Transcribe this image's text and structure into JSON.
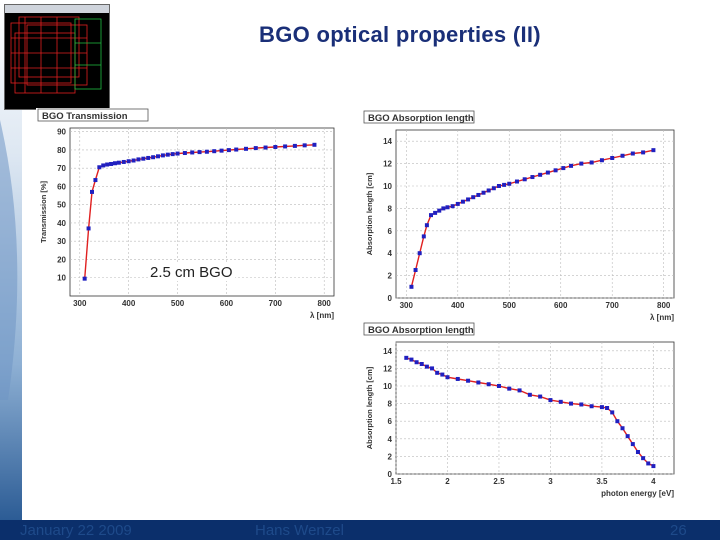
{
  "slide": {
    "title": "BGO optical properties (II)",
    "annotation": "2.5 cm BGO",
    "footer": {
      "date": "January 22 2009",
      "author": "Hans Wenzel",
      "page": "26"
    }
  },
  "colors": {
    "title": "#1a2f78",
    "marker": "#2020c0",
    "fit_line": "#e02020",
    "footer_bg": "#0b2f6b"
  },
  "chart_data": [
    {
      "type": "line",
      "title": "BGO Transmission",
      "xlabel": "λ [nm]",
      "ylabel": "Transmission [%]",
      "xlim": [
        280,
        820
      ],
      "ylim": [
        0,
        92
      ],
      "xticks": [
        300,
        400,
        500,
        600,
        700,
        800
      ],
      "yticks": [
        10,
        20,
        30,
        40,
        50,
        60,
        70,
        80,
        90
      ],
      "grid": true,
      "x": [
        310,
        318,
        325,
        332,
        340,
        348,
        356,
        364,
        372,
        380,
        390,
        400,
        410,
        420,
        430,
        440,
        450,
        460,
        470,
        480,
        490,
        500,
        515,
        530,
        545,
        560,
        575,
        590,
        605,
        620,
        640,
        660,
        680,
        700,
        720,
        740,
        760,
        780
      ],
      "y": [
        9.5,
        37,
        57,
        63.5,
        70.5,
        71.5,
        72,
        72.3,
        72.7,
        73,
        73.4,
        73.8,
        74.2,
        74.8,
        75.2,
        75.6,
        76,
        76.5,
        77,
        77.4,
        77.7,
        78,
        78.3,
        78.6,
        78.8,
        79,
        79.3,
        79.6,
        79.9,
        80.2,
        80.6,
        81,
        81.3,
        81.6,
        81.9,
        82.2,
        82.5,
        82.8
      ]
    },
    {
      "type": "line",
      "title": "BGO  Absorption length",
      "xlabel": "λ [nm]",
      "ylabel": "Absorption length [cm]",
      "xlim": [
        280,
        820
      ],
      "ylim": [
        0,
        15
      ],
      "xticks": [
        300,
        400,
        500,
        600,
        700,
        800
      ],
      "yticks": [
        0,
        2,
        4,
        6,
        8,
        10,
        12,
        14
      ],
      "grid": true,
      "x": [
        310,
        318,
        326,
        334,
        340,
        348,
        356,
        364,
        372,
        380,
        390,
        400,
        410,
        420,
        430,
        440,
        450,
        460,
        470,
        480,
        490,
        500,
        515,
        530,
        545,
        560,
        575,
        590,
        605,
        620,
        640,
        660,
        680,
        700,
        720,
        740,
        760,
        780
      ],
      "y": [
        1.0,
        2.5,
        4.0,
        5.5,
        6.5,
        7.4,
        7.6,
        7.8,
        8.0,
        8.1,
        8.2,
        8.4,
        8.6,
        8.8,
        9.0,
        9.2,
        9.4,
        9.6,
        9.8,
        10.0,
        10.1,
        10.2,
        10.4,
        10.6,
        10.8,
        11.0,
        11.2,
        11.4,
        11.6,
        11.8,
        12.0,
        12.1,
        12.3,
        12.5,
        12.7,
        12.9,
        13.0,
        13.2
      ]
    },
    {
      "type": "line",
      "title": "BGO  Absorption length",
      "xlabel": "photon energy [eV]",
      "ylabel": "Absorption length [cm]",
      "xlim": [
        1.5,
        4.2
      ],
      "ylim": [
        0,
        15
      ],
      "xticks": [
        1.5,
        2,
        2.5,
        3,
        3.5,
        4
      ],
      "yticks": [
        0,
        2,
        4,
        6,
        8,
        10,
        12,
        14
      ],
      "grid": true,
      "x": [
        1.6,
        1.65,
        1.7,
        1.75,
        1.8,
        1.85,
        1.9,
        1.95,
        2.0,
        2.1,
        2.2,
        2.3,
        2.4,
        2.5,
        2.6,
        2.7,
        2.8,
        2.9,
        3.0,
        3.1,
        3.2,
        3.3,
        3.4,
        3.5,
        3.55,
        3.6,
        3.65,
        3.7,
        3.75,
        3.8,
        3.85,
        3.9,
        3.95,
        4.0
      ],
      "y": [
        13.2,
        13.0,
        12.7,
        12.5,
        12.2,
        12.0,
        11.5,
        11.3,
        11.0,
        10.8,
        10.6,
        10.4,
        10.2,
        10.0,
        9.7,
        9.5,
        9.0,
        8.8,
        8.4,
        8.2,
        8.0,
        7.9,
        7.7,
        7.6,
        7.5,
        7.0,
        6.0,
        5.2,
        4.3,
        3.4,
        2.5,
        1.8,
        1.2,
        0.9
      ]
    }
  ]
}
